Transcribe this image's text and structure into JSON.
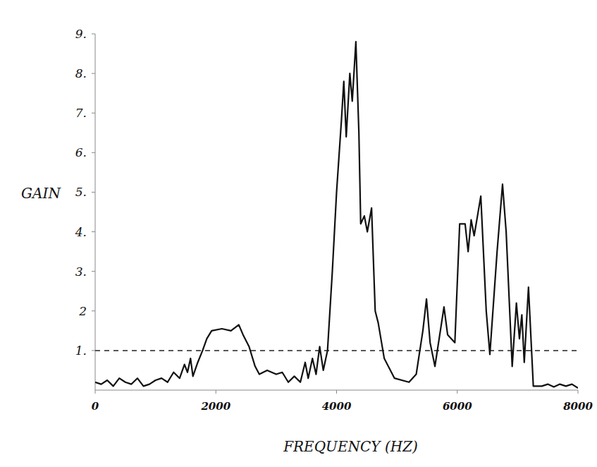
{
  "chart_data": {
    "type": "line",
    "color": "#111111",
    "line_style": "solid",
    "x_label": "FREQUENCY (HZ)",
    "y_label": "GAIN",
    "xlim": [
      0,
      8000
    ],
    "xticks": [
      0,
      2000,
      4000,
      6000,
      8000
    ],
    "ylim": [
      0,
      9
    ],
    "yticks": [
      {
        "value": 1,
        "label": "1."
      },
      {
        "value": 2,
        "label": "2"
      },
      {
        "value": 3,
        "label": "3."
      },
      {
        "value": 4,
        "label": "4."
      },
      {
        "value": 5,
        "label": "5."
      },
      {
        "value": 6,
        "label": "6."
      },
      {
        "value": 7,
        "label": "7."
      },
      {
        "value": 8,
        "label": "8."
      },
      {
        "value": 9,
        "label": "9."
      }
    ],
    "threshold": 1,
    "x": [
      0,
      100,
      200,
      300,
      400,
      500,
      600,
      700,
      800,
      900,
      1000,
      1100,
      1200,
      1300,
      1400,
      1480,
      1530,
      1580,
      1620,
      1700,
      1780,
      1850,
      1930,
      2100,
      2250,
      2380,
      2450,
      2550,
      2650,
      2720,
      2850,
      3000,
      3100,
      3200,
      3300,
      3400,
      3480,
      3530,
      3600,
      3660,
      3720,
      3780,
      3850,
      3930,
      4000,
      4080,
      4120,
      4160,
      4220,
      4260,
      4320,
      4370,
      4400,
      4460,
      4510,
      4580,
      4640,
      4690,
      4790,
      4960,
      5200,
      5320,
      5430,
      5490,
      5550,
      5630,
      5720,
      5780,
      5840,
      5960,
      6040,
      6130,
      6180,
      6230,
      6280,
      6390,
      6480,
      6540,
      6660,
      6750,
      6810,
      6910,
      6980,
      7030,
      7070,
      7110,
      7180,
      7260,
      7400,
      7500,
      7600,
      7700,
      7800,
      7900,
      8000
    ],
    "values": [
      0.2,
      0.15,
      0.25,
      0.1,
      0.3,
      0.2,
      0.15,
      0.3,
      0.1,
      0.15,
      0.25,
      0.3,
      0.2,
      0.45,
      0.3,
      0.65,
      0.45,
      0.8,
      0.35,
      0.7,
      1.0,
      1.3,
      1.5,
      1.55,
      1.5,
      1.65,
      1.4,
      1.1,
      0.6,
      0.4,
      0.5,
      0.4,
      0.45,
      0.2,
      0.35,
      0.2,
      0.7,
      0.3,
      0.8,
      0.4,
      1.1,
      0.5,
      1.0,
      3.0,
      5.0,
      6.8,
      7.8,
      6.4,
      8.0,
      7.3,
      8.8,
      6.5,
      4.2,
      4.4,
      4.0,
      4.6,
      2.0,
      1.7,
      0.8,
      0.3,
      0.2,
      0.4,
      1.5,
      2.3,
      1.2,
      0.6,
      1.5,
      2.1,
      1.4,
      1.2,
      4.2,
      4.2,
      3.5,
      4.3,
      3.9,
      4.9,
      2.0,
      0.9,
      3.5,
      5.2,
      4.0,
      0.6,
      2.2,
      1.3,
      1.9,
      0.7,
      2.6,
      0.1,
      0.1,
      0.15,
      0.08,
      0.15,
      0.1,
      0.15,
      0.05
    ]
  }
}
